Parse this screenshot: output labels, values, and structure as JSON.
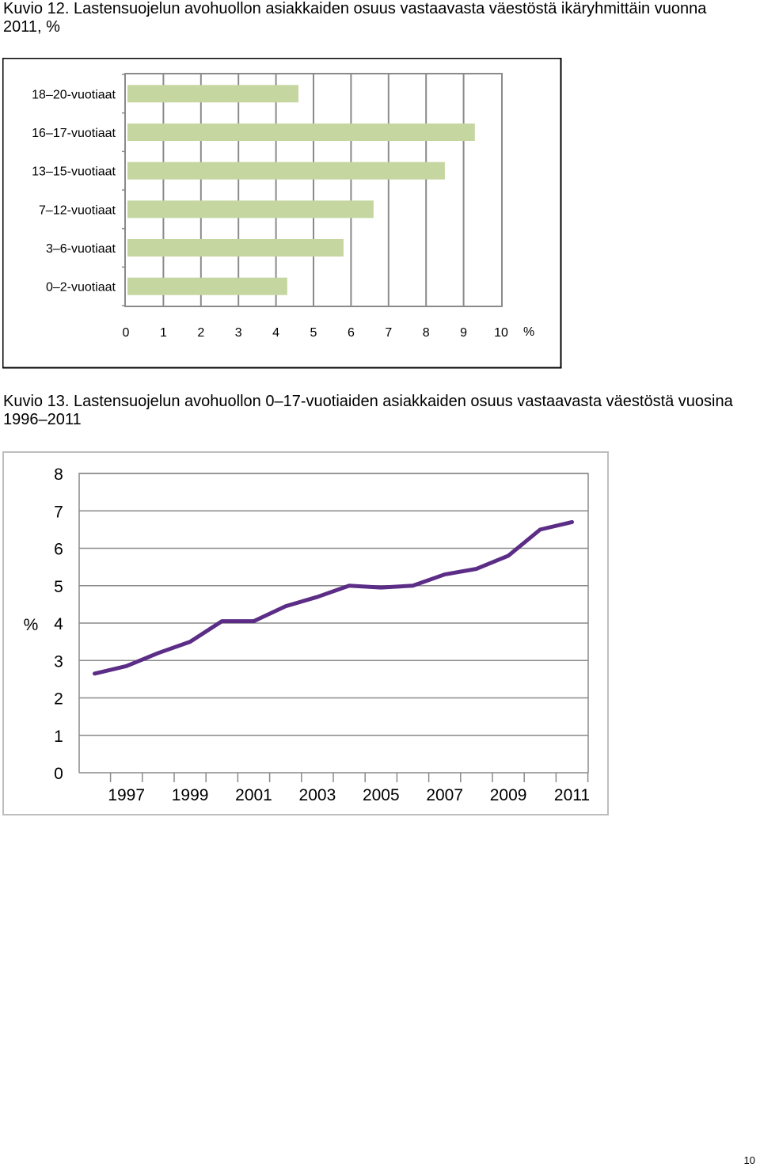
{
  "captions": {
    "fig12": "Kuvio 12. Lastensuojelun avohuollon asiakkaiden osuus vastaavasta väestöstä ikäryhmittäin vuonna 2011, %",
    "fig13": "Kuvio 13. Lastensuojelun avohuollon 0–17-vuotiaiden asiakkaiden osuus vastaavasta väestöstä vuosina 1996–2011"
  },
  "page_number": "10",
  "chart_data": [
    {
      "type": "bar",
      "orientation": "horizontal",
      "categories": [
        "0–2-vuotiaat",
        "3–6-vuotiaat",
        "7–12-vuotiaat",
        "13–15-vuotiaat",
        "16–17-vuotiaat",
        "18–20-vuotiaat"
      ],
      "values": [
        4.3,
        5.8,
        6.6,
        8.5,
        9.3,
        4.6
      ],
      "x_ticks": [
        "0",
        "1",
        "2",
        "3",
        "4",
        "5",
        "6",
        "7",
        "8",
        "9",
        "10"
      ],
      "xlim": [
        0,
        10
      ],
      "unit_label": "%",
      "grid": "vertical",
      "bar_color": "#c5d6a0"
    },
    {
      "type": "line",
      "x": [
        1996,
        1997,
        1998,
        1999,
        2000,
        2001,
        2002,
        2003,
        2004,
        2005,
        2006,
        2007,
        2008,
        2009,
        2010,
        2011
      ],
      "values": [
        2.65,
        2.85,
        3.2,
        3.5,
        4.05,
        4.05,
        4.45,
        4.7,
        5.0,
        4.95,
        5.0,
        5.3,
        5.45,
        5.8,
        6.5,
        6.7
      ],
      "x_tick_labels": [
        "1997",
        "1999",
        "2001",
        "2003",
        "2005",
        "2007",
        "2009",
        "2011"
      ],
      "y_ticks": [
        "0",
        "1",
        "2",
        "3",
        "4",
        "5",
        "6",
        "7",
        "8"
      ],
      "ylim": [
        0,
        8
      ],
      "ylabel": "%",
      "grid": "horizontal",
      "line_color": "#5b2d86"
    }
  ]
}
